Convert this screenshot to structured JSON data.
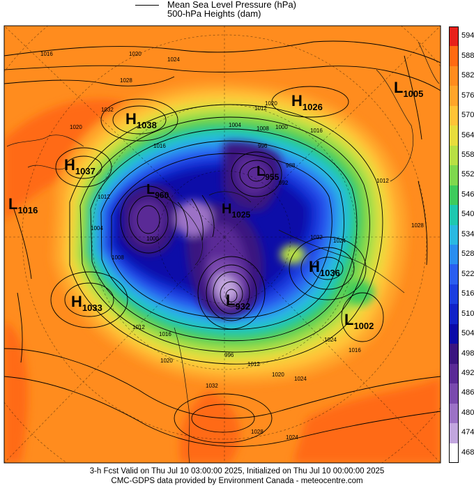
{
  "header": {
    "line1": "Mean Sea Level Pressure (hPa)",
    "line2": "500-hPa Heights (dam)"
  },
  "footer": {
    "line1": "3-h Fcst Valid on Thu Jul 10 03:00:00 2025, Initialized on Thu Jul 10 00:00:00 2025",
    "line2": "CMC-GDPS data provided by Environment Canada - meteocentre.com"
  },
  "colorbar": {
    "levels": [
      "594",
      "588",
      "582",
      "576",
      "570",
      "564",
      "558",
      "552",
      "546",
      "540",
      "534",
      "528",
      "522",
      "516",
      "510",
      "504",
      "498",
      "492",
      "486",
      "480",
      "474",
      "468"
    ],
    "colors": [
      "#e8201a",
      "#ff6a12",
      "#ff8c1e",
      "#ffa52a",
      "#ffc437",
      "#e8dd3c",
      "#b8e044",
      "#7fd84e",
      "#3ecb5c",
      "#1ec8b0",
      "#2ab9e2",
      "#2a8ef0",
      "#2a5ef0",
      "#1a3ee0",
      "#1022c8",
      "#0a0aa8",
      "#3a1480",
      "#5a2a96",
      "#7a4aae",
      "#9c72c6",
      "#c2a6de",
      "#ffffff"
    ]
  },
  "pressure_centers": [
    {
      "type": "H",
      "value": "1038"
    },
    {
      "type": "H",
      "value": "1037"
    },
    {
      "type": "L",
      "value": "1016"
    },
    {
      "type": "H",
      "value": "1026"
    },
    {
      "type": "L",
      "value": "1005"
    },
    {
      "type": "L",
      "value": "955"
    },
    {
      "type": "L",
      "value": "960"
    },
    {
      "type": "H",
      "value": "1025"
    },
    {
      "type": "H",
      "value": "1036"
    },
    {
      "type": "H",
      "value": "1033"
    },
    {
      "type": "L",
      "value": "932"
    },
    {
      "type": "L",
      "value": "1002"
    }
  ],
  "isobar_labels": [
    "1016",
    "1020",
    "1024",
    "1028",
    "1032",
    "1012",
    "1008",
    "1004",
    "1000",
    "996",
    "992",
    "988",
    "1020",
    "1016",
    "1012",
    "1024",
    "1028",
    "1032",
    "1024",
    "1020",
    "1016",
    "1012",
    "1008",
    "1004",
    "1000",
    "996",
    "1012",
    "1016",
    "1020",
    "1024",
    "1032",
    "1028",
    "1024",
    "1020",
    "1016",
    "1012"
  ]
}
